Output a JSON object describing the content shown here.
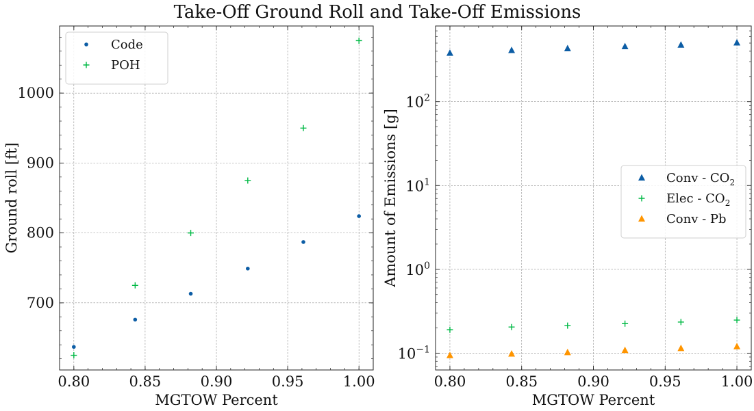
{
  "figure_title": "Take-Off Ground Roll and Take-Off Emissions",
  "colors": {
    "blue": "#0c5da5",
    "green": "#00b945",
    "orange": "#ff9500",
    "grid": "#8c8c8c"
  },
  "chart_data": [
    {
      "type": "scatter",
      "title": "",
      "xlabel": "MGTOW Percent",
      "ylabel": "Ground roll [ft]",
      "xlim": [
        0.79,
        1.01
      ],
      "ylim": [
        604,
        1096
      ],
      "xticks": [
        0.8,
        0.85,
        0.9,
        0.95,
        1.0
      ],
      "xtick_labels": [
        "0.80",
        "0.85",
        "0.90",
        "0.95",
        "1.00"
      ],
      "yticks": [
        700,
        800,
        900,
        1000
      ],
      "ytick_labels": [
        "700",
        "800",
        "900",
        "1000"
      ],
      "grid": true,
      "legend_position": "top-left",
      "series": [
        {
          "name": "Code",
          "marker": "dot",
          "color": "#0c5da5",
          "x": [
            0.8,
            0.843,
            0.882,
            0.922,
            0.961,
            1.0
          ],
          "y": [
            637,
            676,
            713,
            749,
            787,
            824
          ]
        },
        {
          "name": "POH",
          "marker": "plus",
          "color": "#00b945",
          "x": [
            0.8,
            0.843,
            0.882,
            0.922,
            0.961,
            1.0
          ],
          "y": [
            625,
            725,
            800,
            875,
            950,
            1075
          ]
        }
      ]
    },
    {
      "type": "scatter",
      "title": "",
      "xlabel": "MGTOW Percent",
      "ylabel": "Amount of Emissions [g]",
      "xlim": [
        0.79,
        1.01
      ],
      "ylim": [
        0.063,
        800
      ],
      "yscale": "log",
      "xticks": [
        0.8,
        0.85,
        0.9,
        0.95,
        1.0
      ],
      "xtick_labels": [
        "0.80",
        "0.85",
        "0.90",
        "0.95",
        "1.00"
      ],
      "yticks": [
        0.1,
        1,
        10,
        100
      ],
      "ytick_labels": [
        [
          "10",
          "−1"
        ],
        [
          "10",
          "0"
        ],
        [
          "10",
          "1"
        ],
        [
          "10",
          "2"
        ]
      ],
      "grid": true,
      "legend_position": "center-right",
      "series": [
        {
          "name": "Conv - CO",
          "name_sub": "2",
          "marker": "triangle",
          "color": "#0c5da5",
          "x": [
            0.8,
            0.843,
            0.882,
            0.922,
            0.961,
            1.0
          ],
          "y": [
            380,
            410,
            430,
            455,
            475,
            505
          ]
        },
        {
          "name": "Elec - CO",
          "name_sub": "2",
          "marker": "plus",
          "color": "#00b945",
          "x": [
            0.8,
            0.843,
            0.882,
            0.922,
            0.961,
            1.0
          ],
          "y": [
            0.19,
            0.205,
            0.213,
            0.225,
            0.235,
            0.248
          ]
        },
        {
          "name": "Conv - Pb",
          "name_sub": "",
          "marker": "triangle",
          "color": "#ff9500",
          "x": [
            0.8,
            0.843,
            0.882,
            0.922,
            0.961,
            1.0
          ],
          "y": [
            0.094,
            0.098,
            0.102,
            0.108,
            0.114,
            0.12
          ]
        }
      ]
    }
  ]
}
